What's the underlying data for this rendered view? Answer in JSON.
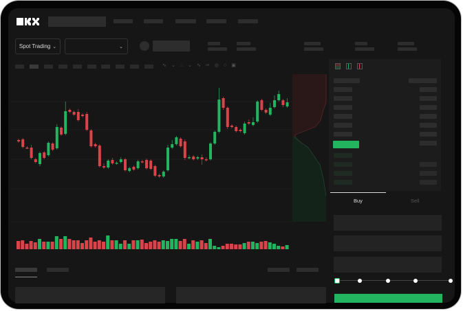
{
  "header": {
    "logo_text": "OKX",
    "trading_mode_label": "Spot Trading",
    "pair_selector_value": ""
  },
  "order_form": {
    "tabs": [
      {
        "label": "Buy",
        "active": true
      },
      {
        "label": "Sell",
        "active": false
      }
    ],
    "slider_steps": 5,
    "slider_value_percent": 0
  },
  "colors": {
    "up": "#23b45f",
    "down": "#d9434a",
    "background": "#161616",
    "accent_button": "#23b45f"
  },
  "icons": [
    "chevron-down-icon",
    "orderbook-both-icon",
    "orderbook-bids-icon",
    "orderbook-asks-icon",
    "indicator-icon",
    "draw-icon",
    "settings-icon",
    "fullscreen-icon"
  ],
  "chart_data": {
    "type": "candlestick",
    "title": "",
    "xlabel": "",
    "ylabel": "",
    "grid": true,
    "candles": [
      [
        96,
        94,
        98,
        92
      ],
      [
        97,
        86,
        99,
        84
      ],
      [
        85,
        84,
        87,
        83
      ],
      [
        85,
        70,
        89,
        68
      ],
      [
        68,
        64,
        70,
        62
      ],
      [
        61,
        77,
        79,
        58
      ],
      [
        78,
        70,
        80,
        68
      ],
      [
        74,
        92,
        94,
        72
      ],
      [
        91,
        82,
        93,
        80
      ],
      [
        84,
        115,
        119,
        82
      ],
      [
        114,
        104,
        116,
        102
      ],
      [
        105,
        138,
        152,
        103
      ],
      [
        140,
        137,
        142,
        135
      ],
      [
        137,
        133,
        139,
        131
      ],
      [
        137,
        125,
        141,
        123
      ],
      [
        133,
        131,
        135,
        129
      ],
      [
        134,
        111,
        137,
        109
      ],
      [
        110,
        87,
        112,
        85
      ],
      [
        90,
        87,
        92,
        85
      ],
      [
        88,
        58,
        90,
        56
      ],
      [
        58,
        56,
        62,
        54
      ],
      [
        56,
        66,
        68,
        54
      ],
      [
        67,
        62,
        70,
        60
      ],
      [
        62,
        63,
        65,
        60
      ],
      [
        64,
        68,
        71,
        62
      ],
      [
        68,
        52,
        70,
        50
      ],
      [
        51,
        55,
        57,
        49
      ],
      [
        57,
        53,
        59,
        51
      ],
      [
        55,
        65,
        67,
        53
      ],
      [
        65,
        64,
        67,
        62
      ],
      [
        67,
        55,
        69,
        53
      ],
      [
        66,
        54,
        68,
        52
      ],
      [
        58,
        44,
        60,
        42
      ],
      [
        45,
        43,
        47,
        41
      ],
      [
        43,
        50,
        52,
        41
      ],
      [
        52,
        85,
        89,
        50
      ],
      [
        85,
        90,
        96,
        83
      ],
      [
        90,
        100,
        102,
        88
      ],
      [
        98,
        87,
        100,
        85
      ],
      [
        94,
        70,
        97,
        67
      ],
      [
        70,
        71,
        74,
        68
      ],
      [
        72,
        68,
        74,
        66
      ],
      [
        69,
        71,
        73,
        67
      ],
      [
        71,
        68,
        75,
        60
      ],
      [
        68,
        67,
        71,
        65
      ],
      [
        68,
        91,
        93,
        66
      ],
      [
        91,
        108,
        110,
        89
      ],
      [
        108,
        155,
        172,
        106
      ],
      [
        157,
        143,
        159,
        140
      ],
      [
        143,
        115,
        145,
        112
      ],
      [
        117,
        115,
        119,
        113
      ],
      [
        115,
        109,
        117,
        107
      ],
      [
        111,
        109,
        113,
        107
      ],
      [
        106,
        120,
        123,
        104
      ],
      [
        122,
        120,
        126,
        118
      ],
      [
        118,
        122,
        129,
        116
      ],
      [
        123,
        152,
        154,
        121
      ],
      [
        154,
        140,
        156,
        138
      ],
      [
        140,
        136,
        142,
        134
      ],
      [
        133,
        143,
        150,
        131
      ],
      [
        144,
        154,
        161,
        142
      ],
      [
        154,
        163,
        168,
        152
      ],
      [
        154,
        147,
        156,
        144
      ],
      [
        145,
        151,
        157,
        143
      ]
    ],
    "volume": [
      12,
      13,
      8,
      12,
      10,
      15,
      11,
      11,
      11,
      19,
      15,
      19,
      15,
      13,
      13,
      9,
      13,
      17,
      11,
      13,
      11,
      20,
      13,
      13,
      8,
      13,
      8,
      13,
      13,
      14,
      9,
      11,
      13,
      11,
      13,
      12,
      15,
      15,
      12,
      15,
      8,
      13,
      11,
      13,
      9,
      15,
      5,
      3,
      5,
      8,
      8,
      7,
      7,
      9,
      11,
      11,
      9,
      11,
      12,
      10,
      8,
      5,
      4,
      6
    ]
  }
}
